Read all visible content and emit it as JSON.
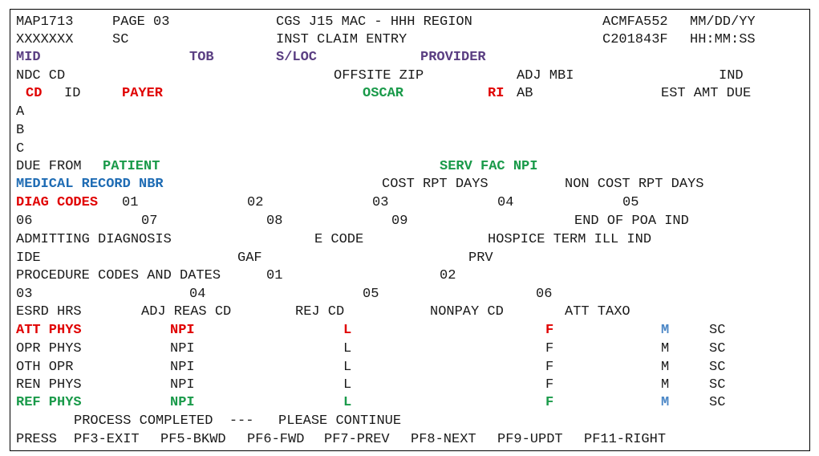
{
  "header": {
    "map_id": "MAP1713",
    "page": "PAGE 03",
    "title": "CGS J15 MAC - HHH REGION",
    "screen_id": "ACMFA552",
    "date": "MM/DD/YY",
    "operator": "XXXXXXX",
    "sc": "SC",
    "subtitle": "INST CLAIM ENTRY",
    "terminal": "C201843F",
    "time": "HH:MM:SS"
  },
  "claim_header": {
    "mid": "MID",
    "tob": "TOB",
    "sloc": "S/LOC",
    "provider": "PROVIDER"
  },
  "payer_header": {
    "ndc_cd": "NDC CD",
    "offsite_zip": "OFFSITE ZIP",
    "adj_mbi": "ADJ MBI",
    "ind": "IND",
    "cd": "CD",
    "id": "ID",
    "payer": "PAYER",
    "oscar": "OSCAR",
    "ri": "RI",
    "ab": "AB",
    "est_amt_due": "EST AMT DUE"
  },
  "payer_rows": [
    "A",
    "B",
    "C"
  ],
  "due_from": {
    "label": "DUE FROM",
    "patient": "PATIENT",
    "serv_fac_npi": "SERV FAC NPI"
  },
  "record": {
    "medical_record_nbr": "MEDICAL RECORD NBR",
    "cost_rpt_days": "COST RPT DAYS",
    "non_cost_rpt_days": "NON COST RPT DAYS"
  },
  "diag": {
    "label": "DIAG CODES",
    "c01": "01",
    "c02": "02",
    "c03": "03",
    "c04": "04",
    "c05": "05",
    "c06": "06",
    "c07": "07",
    "c08": "08",
    "c09": "09",
    "end_poa": "END OF POA IND"
  },
  "admit": {
    "admitting_diagnosis": "ADMITTING DIAGNOSIS",
    "e_code": "E CODE",
    "hospice": "HOSPICE TERM ILL IND"
  },
  "ide_row": {
    "ide": "IDE",
    "gaf": "GAF",
    "prv": "PRV"
  },
  "proc": {
    "label": "PROCEDURE CODES AND DATES",
    "p01": "01",
    "p02": "02",
    "p03": "03",
    "p04": "04",
    "p05": "05",
    "p06": "06"
  },
  "esrd": {
    "esrd_hrs": "ESRD HRS",
    "adj_reas_cd": "ADJ REAS CD",
    "rej_cd": "REJ CD",
    "nonpay_cd": "NONPAY CD",
    "att_taxo": "ATT TAXO"
  },
  "physicians": [
    {
      "role": "ATT PHYS",
      "npi": "NPI",
      "l": "L",
      "f": "F",
      "m": "M",
      "sc": "SC"
    },
    {
      "role": "OPR PHYS",
      "npi": "NPI",
      "l": "L",
      "f": "F",
      "m": "M",
      "sc": "SC"
    },
    {
      "role": "OTH OPR",
      "npi": "NPI",
      "l": "L",
      "f": "F",
      "m": "M",
      "sc": "SC"
    },
    {
      "role": "REN PHYS",
      "npi": "NPI",
      "l": "L",
      "f": "F",
      "m": "M",
      "sc": "SC"
    },
    {
      "role": "REF PHYS",
      "npi": "NPI",
      "l": "L",
      "f": "F",
      "m": "M",
      "sc": "SC"
    }
  ],
  "status": {
    "message": "PROCESS COMPLETED  ---   PLEASE CONTINUE"
  },
  "pfkeys": {
    "press": "PRESS",
    "pf3": "PF3-EXIT",
    "pf5": "PF5-BKWD",
    "pf6": "PF6-FWD",
    "pf7": "PF7-PREV",
    "pf8": "PF8-NEXT",
    "pf9": "PF9-UPDT",
    "pf11": "PF11-RIGHT"
  },
  "colors": {
    "red": "#e00000",
    "green": "#1a9a4a",
    "purple": "#5a3e82",
    "blue": "#1f6cb4",
    "light_blue": "#4a86c6"
  }
}
